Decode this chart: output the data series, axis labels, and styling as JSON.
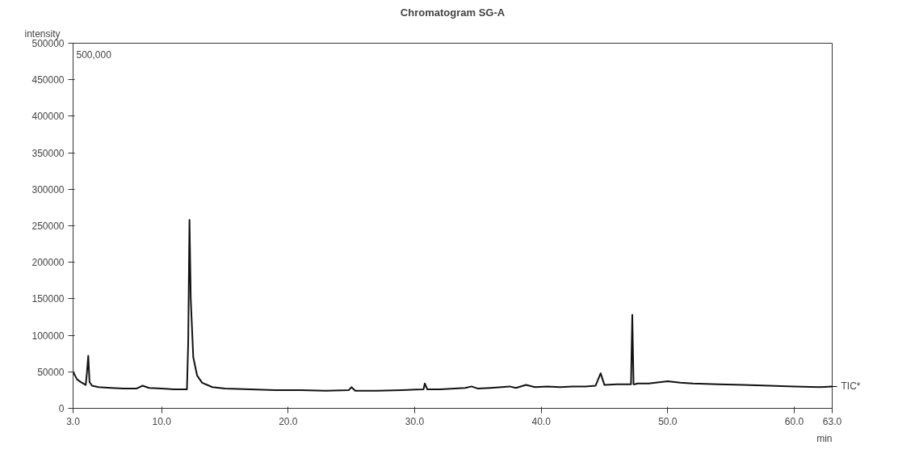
{
  "chart_data": {
    "type": "line",
    "title": "Chromatogram SG-A",
    "xlabel": "min",
    "ylabel": "intensity",
    "annotations": [
      "500,000"
    ],
    "series": [
      {
        "name": "TIC*",
        "color": "#111111",
        "x": [
          3.0,
          3.3,
          3.6,
          4.0,
          4.1,
          4.2,
          4.3,
          4.5,
          5.0,
          6.0,
          7.0,
          8.0,
          8.5,
          9.0,
          10.0,
          11.0,
          12.0,
          12.1,
          12.2,
          12.3,
          12.5,
          12.8,
          13.2,
          14.0,
          15.0,
          17.0,
          19.0,
          21.0,
          23.0,
          24.8,
          25.0,
          25.3,
          27.0,
          29.0,
          30.7,
          30.8,
          31.0,
          32.0,
          34.0,
          34.5,
          35.0,
          36.0,
          37.5,
          38.0,
          38.8,
          39.5,
          40.5,
          41.5,
          42.5,
          43.5,
          44.3,
          44.7,
          45.0,
          46.0,
          47.1,
          47.2,
          47.3,
          47.4,
          47.6,
          48.5,
          50.0,
          51.0,
          52.0,
          54.0,
          56.0,
          58.0,
          60.0,
          62.0,
          63.0
        ],
        "values": [
          50000,
          40000,
          36000,
          32000,
          50000,
          72000,
          36000,
          31000,
          29000,
          28000,
          27000,
          27000,
          31000,
          28000,
          27000,
          26000,
          26000,
          90000,
          258000,
          150000,
          70000,
          45000,
          35000,
          29000,
          27000,
          26000,
          25000,
          25000,
          24000,
          25000,
          29000,
          24000,
          24000,
          25000,
          26000,
          34000,
          26000,
          26000,
          28000,
          30000,
          27000,
          28000,
          30000,
          28000,
          32000,
          29000,
          30000,
          29000,
          30000,
          30000,
          31000,
          48000,
          32000,
          33000,
          33000,
          128000,
          33000,
          33000,
          34000,
          34000,
          37000,
          35000,
          34000,
          33000,
          32000,
          31000,
          30000,
          29000,
          30000
        ]
      }
    ],
    "xlim": [
      3.0,
      63.0
    ],
    "xticks": [
      {
        "value": 3.0,
        "label": "3.0"
      },
      {
        "value": 10.0,
        "label": "10.0"
      },
      {
        "value": 20.0,
        "label": "20.0"
      },
      {
        "value": 30.0,
        "label": "30.0"
      },
      {
        "value": 40.0,
        "label": "40.0"
      },
      {
        "value": 50.0,
        "label": "50.0"
      },
      {
        "value": 60.0,
        "label": "60.0"
      },
      {
        "value": 63.0,
        "label": "63.0"
      }
    ],
    "ylim": [
      0,
      500000
    ],
    "yticks": [
      0,
      50000,
      100000,
      150000,
      200000,
      250000,
      300000,
      350000,
      400000,
      450000,
      500000
    ],
    "grid": false,
    "marker": "none",
    "line_style": "solid"
  }
}
